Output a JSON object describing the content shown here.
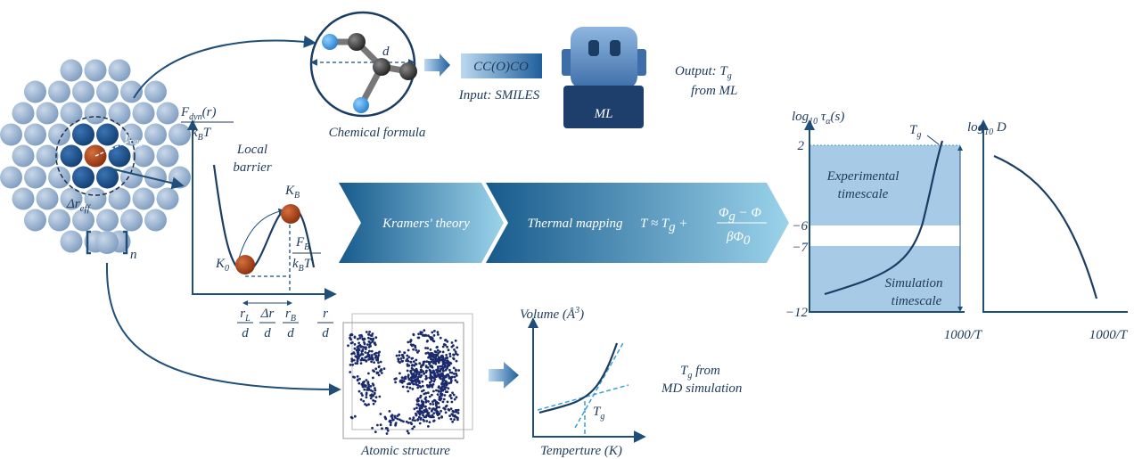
{
  "cluster": {
    "r_cage": [
      "r",
      "cage"
    ],
    "dr_eff": [
      "Δr",
      "eff"
    ],
    "n": "n"
  },
  "chemical": {
    "d": "d",
    "caption": "Chemical formula",
    "smiles": "CC(O)CO",
    "input": "Input: SMILES",
    "ml": "ML",
    "output": {
      "line1": [
        "Output: T",
        "g"
      ],
      "line2": "from ML"
    }
  },
  "barrier": {
    "y_label": {
      "num": [
        "F",
        "dyn",
        "(r)"
      ],
      "den": [
        "k",
        "B",
        "T"
      ]
    },
    "local": [
      "Local",
      "barrier"
    ],
    "k_b": [
      "K",
      "B"
    ],
    "k_0": [
      "K",
      "0"
    ],
    "f_b": {
      "num": [
        "F",
        "B"
      ],
      "den": [
        "k",
        "B",
        "T"
      ]
    },
    "r_l": {
      "num": [
        "r",
        "L"
      ],
      "den": "d"
    },
    "dr": {
      "num": "Δr",
      "den": "d"
    },
    "r_b": {
      "num": [
        "r",
        "B"
      ],
      "den": "d"
    },
    "r": {
      "num": "r",
      "den": "d"
    }
  },
  "arrow": {
    "kramers": "Kramers' theory",
    "thermal": "Thermal mapping",
    "eq_left": [
      "T ≈ T",
      "g",
      " +"
    ],
    "eq_num": [
      "Φ",
      "g",
      " − Φ"
    ],
    "eq_den": [
      "βΦ",
      "0"
    ]
  },
  "timescale_plot": {
    "y_label": [
      "log",
      "10",
      " τ",
      "α",
      "(s)"
    ],
    "tg": [
      "T",
      "g"
    ],
    "ticks": [
      "2",
      "−6",
      "−7",
      "−12"
    ],
    "experimental": [
      "Experimental",
      "timescale"
    ],
    "simulation": [
      "Simulation",
      "timescale"
    ],
    "x_label": "1000/T"
  },
  "diffusion_plot": {
    "y_label": [
      "log",
      "10",
      " D"
    ],
    "x_label": "1000/T"
  },
  "md": {
    "atomic": "Atomic structure",
    "volume": [
      "Volume (Å",
      "3",
      ")"
    ],
    "temperature": "Temperture (K)",
    "tg": [
      "T",
      "g"
    ],
    "result": {
      "line1": [
        "T",
        "g",
        " from"
      ],
      "line2": "MD simulation"
    }
  }
}
